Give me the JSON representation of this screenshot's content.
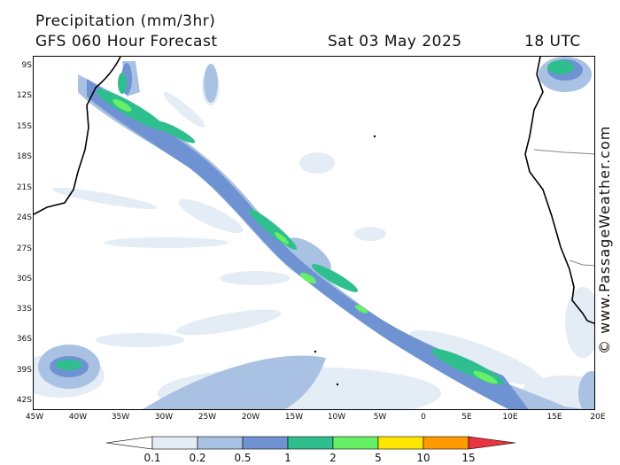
{
  "header": {
    "title": "Precipitation (mm/3hr)",
    "model": "GFS 060 Hour Forecast",
    "date": "Sat 03 May 2025",
    "time": "18 UTC"
  },
  "map": {
    "lat_labels": [
      "9S",
      "12S",
      "15S",
      "18S",
      "21S",
      "24S",
      "27S",
      "30S",
      "33S",
      "36S",
      "39S",
      "42S"
    ],
    "lon_labels": [
      "45W",
      "40W",
      "35W",
      "30W",
      "25W",
      "20W",
      "15W",
      "10W",
      "5W",
      "0",
      "5E",
      "10E",
      "15E",
      "20E"
    ]
  },
  "copyright": "© www.PassageWeather.com",
  "legend": {
    "values": [
      "0.1",
      "0.2",
      "0.5",
      "1",
      "2",
      "5",
      "10",
      "15"
    ],
    "colors": [
      "#ffffff",
      "#e4ecf6",
      "#a9c1e2",
      "#6f93d2",
      "#2fbf8f",
      "#66f066",
      "#ffe600",
      "#ff9900",
      "#e8343f"
    ]
  },
  "colors": {
    "very_light": "#e4ecf6",
    "light": "#a9c1e2",
    "medium": "#6f93d2",
    "teal": "#2fbf8f",
    "green": "#66f066"
  }
}
